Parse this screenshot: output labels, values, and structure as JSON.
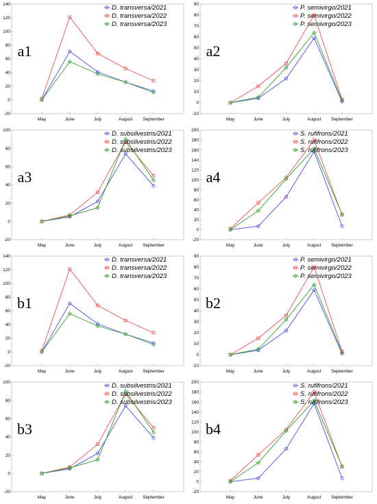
{
  "colors": {
    "y2021": "#4a4af0",
    "y2022": "#f05050",
    "y2023": "#2fa02f"
  },
  "markers": {
    "y2021": "circle",
    "y2022": "square",
    "y2023": "diamond"
  },
  "chart_data": [
    {
      "label": "a1",
      "type": "line",
      "categories": [
        "May",
        "June",
        "July",
        "August",
        "September"
      ],
      "ylim": [
        -20,
        140
      ],
      "yticks": [
        -20,
        0,
        20,
        40,
        60,
        80,
        100,
        120,
        140
      ],
      "series": [
        {
          "name": "D. transversa/2021",
          "values": [
            0,
            71,
            41,
            26,
            13
          ]
        },
        {
          "name": "D. transversa/2022",
          "values": [
            2,
            121,
            68,
            46,
            28
          ]
        },
        {
          "name": "D. transversa/2023",
          "values": [
            0,
            56,
            38,
            26,
            11
          ]
        }
      ]
    },
    {
      "label": "a2",
      "type": "line",
      "categories": [
        "May",
        "June",
        "July",
        "August",
        "September"
      ],
      "ylim": [
        -10,
        90
      ],
      "yticks": [
        -10,
        0,
        10,
        20,
        30,
        40,
        50,
        60,
        70,
        80,
        90
      ],
      "series": [
        {
          "name": "P. semivirgo/2021",
          "values": [
            0,
            4,
            22,
            59,
            1
          ]
        },
        {
          "name": "P. semivirgo/2022",
          "values": [
            0,
            15,
            36,
            80,
            3
          ]
        },
        {
          "name": "P. semivirgo/2023",
          "values": [
            0,
            5,
            32,
            64,
            2
          ]
        }
      ]
    },
    {
      "label": "a3",
      "type": "line",
      "categories": [
        "May",
        "June",
        "July",
        "August",
        "September"
      ],
      "ylim": [
        -20,
        100
      ],
      "yticks": [
        -20,
        0,
        20,
        40,
        60,
        80,
        100
      ],
      "series": [
        {
          "name": "D. subsilvestris/2021",
          "values": [
            0,
            5,
            22,
            74,
            39
          ]
        },
        {
          "name": "D. subsilvestris/2022",
          "values": [
            0,
            7,
            32,
            87,
            50
          ]
        },
        {
          "name": "D. subsilvestris/2023",
          "values": [
            0,
            6,
            15,
            90,
            45
          ]
        }
      ]
    },
    {
      "label": "a4",
      "type": "line",
      "categories": [
        "May",
        "June",
        "July",
        "August",
        "September"
      ],
      "ylim": [
        -20,
        200
      ],
      "yticks": [
        -20,
        0,
        20,
        40,
        60,
        80,
        100,
        120,
        140,
        160,
        180,
        200
      ],
      "series": [
        {
          "name": "S. rufifrons/2021",
          "values": [
            0,
            7,
            66,
            157,
            7
          ]
        },
        {
          "name": "S. rufifrons/2022",
          "values": [
            2,
            54,
            105,
            180,
            30
          ]
        },
        {
          "name": "S. rufifrons/2023",
          "values": [
            0,
            38,
            102,
            163,
            31
          ]
        }
      ]
    },
    {
      "label": "b1",
      "type": "line",
      "categories": [
        "May",
        "June",
        "July",
        "August",
        "September"
      ],
      "ylim": [
        -20,
        140
      ],
      "yticks": [
        -20,
        0,
        20,
        40,
        60,
        80,
        100,
        120,
        140
      ],
      "series": [
        {
          "name": "D. transversa/2021",
          "values": [
            0,
            71,
            41,
            26,
            13
          ]
        },
        {
          "name": "D. transversa/2022",
          "values": [
            2,
            121,
            68,
            46,
            28
          ]
        },
        {
          "name": "D. transversa/2023",
          "values": [
            0,
            56,
            38,
            26,
            11
          ]
        }
      ]
    },
    {
      "label": "b2",
      "type": "line",
      "categories": [
        "May",
        "June",
        "July",
        "August",
        "September"
      ],
      "ylim": [
        -10,
        90
      ],
      "yticks": [
        -10,
        0,
        10,
        20,
        30,
        40,
        50,
        60,
        70,
        80,
        90
      ],
      "series": [
        {
          "name": "P. semivirgo/2021",
          "values": [
            0,
            4,
            22,
            59,
            1
          ]
        },
        {
          "name": "P. semivirgo/2022",
          "values": [
            0,
            15,
            36,
            80,
            3
          ]
        },
        {
          "name": "P. semivirgo/2023",
          "values": [
            0,
            5,
            32,
            64,
            2
          ]
        }
      ]
    },
    {
      "label": "b3",
      "type": "line",
      "categories": [
        "May",
        "June",
        "July",
        "August",
        "September"
      ],
      "ylim": [
        -20,
        100
      ],
      "yticks": [
        -20,
        0,
        20,
        40,
        60,
        80,
        100
      ],
      "series": [
        {
          "name": "D. subsilvestris/2021",
          "values": [
            0,
            5,
            22,
            74,
            39
          ]
        },
        {
          "name": "D. subsilvestris/2022",
          "values": [
            0,
            7,
            32,
            87,
            50
          ]
        },
        {
          "name": "D. subsilvestris/2023",
          "values": [
            0,
            6,
            15,
            90,
            45
          ]
        }
      ]
    },
    {
      "label": "b4",
      "type": "line",
      "categories": [
        "May",
        "June",
        "July",
        "August",
        "September"
      ],
      "ylim": [
        -20,
        200
      ],
      "yticks": [
        -20,
        0,
        20,
        40,
        60,
        80,
        100,
        120,
        140,
        160,
        180,
        200
      ],
      "series": [
        {
          "name": "S. rufifrons/2021",
          "values": [
            0,
            7,
            66,
            157,
            7
          ]
        },
        {
          "name": "S. rufifrons/2022",
          "values": [
            2,
            54,
            105,
            180,
            30
          ]
        },
        {
          "name": "S. rufifrons/2023",
          "values": [
            0,
            38,
            102,
            163,
            31
          ]
        }
      ]
    }
  ]
}
